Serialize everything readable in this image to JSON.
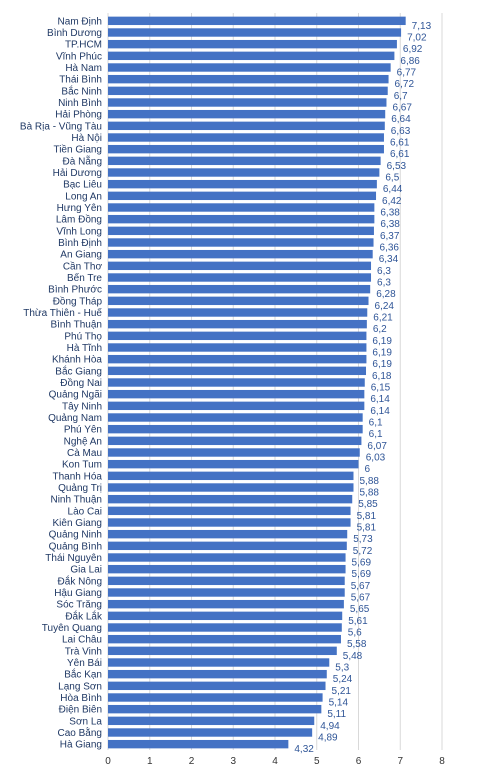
{
  "chart_data": {
    "type": "bar",
    "orientation": "horizontal",
    "title": "",
    "xlabel": "",
    "ylabel": "",
    "xlim": [
      0,
      8
    ],
    "x_ticks": [
      "0",
      "1",
      "2",
      "3",
      "4",
      "5",
      "6",
      "7",
      "8"
    ],
    "grid": true,
    "bar_color": "#4472c4",
    "label_color": "#2f5597",
    "categories": [
      "Nam Định",
      "Bình Dương",
      "TP.HCM",
      "Vĩnh Phúc",
      "Hà Nam",
      "Thái Bình",
      "Bắc Ninh",
      "Ninh Bình",
      "Hải Phòng",
      "Bà Rịa - Vũng Tàu",
      "Hà Nội",
      "Tiền Giang",
      "Đà Nẵng",
      "Hải Dương",
      "Bạc Liêu",
      "Long An",
      "Hưng Yên",
      "Lâm Đồng",
      "Vĩnh Long",
      "Bình Định",
      "An Giang",
      "Cần Thơ",
      "Bến Tre",
      "Bình Phước",
      "Đồng Tháp",
      "Thừa Thiên - Huế",
      "Bình Thuận",
      "Phú Thọ",
      "Hà Tĩnh",
      "Khánh Hòa",
      "Bắc Giang",
      "Đồng Nai",
      "Quảng Ngãi",
      "Tây Ninh",
      "Quảng Nam",
      "Phú Yên",
      "Nghệ An",
      "Cà Mau",
      "Kon Tum",
      "Thanh Hóa",
      "Quảng Trị",
      "Ninh Thuận",
      "Lào Cai",
      "Kiên Giang",
      "Quảng Ninh",
      "Quảng Bình",
      "Thái Nguyên",
      "Gia Lai",
      "Đắk Nông",
      "Hậu Giang",
      "Sóc Trăng",
      "Đắk Lắk",
      "Tuyên Quang",
      "Lai Châu",
      "Trà Vinh",
      "Yên Bái",
      "Bắc Kạn",
      "Lạng Sơn",
      "Hòa Bình",
      "Điện Biên",
      "Sơn La",
      "Cao Bằng",
      "Hà Giang"
    ],
    "values": [
      7.13,
      7.02,
      6.92,
      6.86,
      6.77,
      6.72,
      6.7,
      6.67,
      6.64,
      6.63,
      6.61,
      6.61,
      6.53,
      6.5,
      6.44,
      6.42,
      6.38,
      6.38,
      6.37,
      6.36,
      6.34,
      6.3,
      6.3,
      6.28,
      6.24,
      6.21,
      6.2,
      6.19,
      6.19,
      6.19,
      6.18,
      6.15,
      6.14,
      6.14,
      6.1,
      6.1,
      6.07,
      6.03,
      6,
      5.88,
      5.88,
      5.85,
      5.81,
      5.81,
      5.73,
      5.72,
      5.69,
      5.69,
      5.67,
      5.67,
      5.65,
      5.61,
      5.6,
      5.58,
      5.48,
      5.3,
      5.24,
      5.21,
      5.14,
      5.11,
      4.94,
      4.89,
      4.32
    ],
    "value_labels": [
      "7,13",
      "7,02",
      "6,92",
      "6,86",
      "6,77",
      "6,72",
      "6,7",
      "6,67",
      "6,64",
      "6,63",
      "6,61",
      "6,61",
      "6,53",
      "6,5",
      "6,44",
      "6,42",
      "6,38",
      "6,38",
      "6,37",
      "6,36",
      "6,34",
      "6,3",
      "6,3",
      "6,28",
      "6,24",
      "6,21",
      "6,2",
      "6,19",
      "6,19",
      "6,19",
      "6,18",
      "6,15",
      "6,14",
      "6,14",
      "6,1",
      "6,1",
      "6,07",
      "6,03",
      "6",
      "5,88",
      "5,88",
      "5,85",
      "5,81",
      "5,81",
      "5,73",
      "5,72",
      "5,69",
      "5,69",
      "5,67",
      "5,67",
      "5,65",
      "5,61",
      "5,6",
      "5,58",
      "5,48",
      "5,3",
      "5,24",
      "5,21",
      "5,14",
      "5,11",
      "4,94",
      "4,89",
      "4,32"
    ]
  }
}
